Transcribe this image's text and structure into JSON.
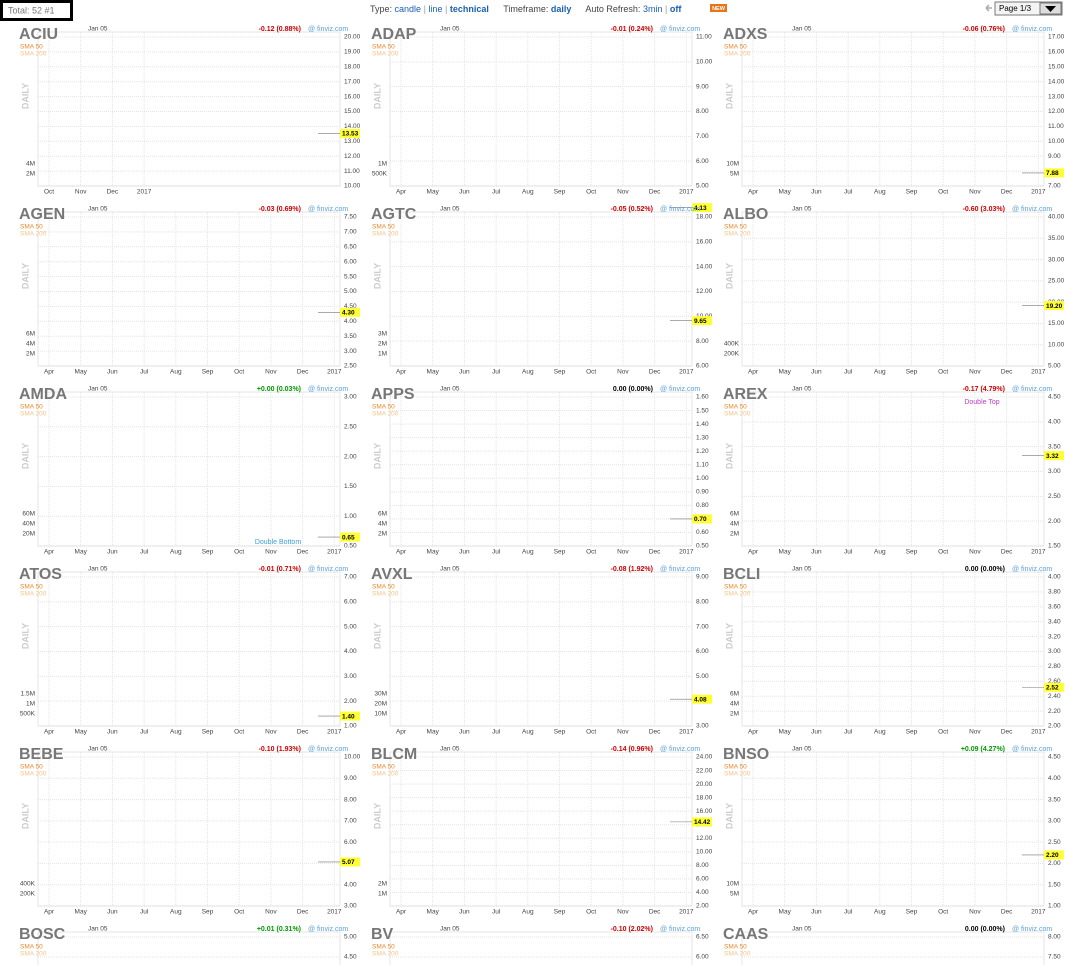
{
  "header": {
    "total": "Total: 52 #1",
    "type_label": "Type:",
    "type_options": [
      "candle",
      "line",
      "technical"
    ],
    "timeframe_label": "Timeframe:",
    "timeframe": "daily",
    "refresh_label": "Auto Refresh:",
    "refresh_options": [
      "3min",
      "off"
    ],
    "new_badge": "NEW",
    "page": "Page 1/3"
  },
  "common": {
    "date": "Jan 05",
    "source": "@ finviz.com",
    "sma50": "SMA 50",
    "sma200": "SMA 200",
    "timeframe": "DAILY"
  },
  "months": [
    "Apr",
    "May",
    "Jun",
    "Jul",
    "Aug",
    "Sep",
    "Oct",
    "Nov",
    "Dec",
    "2017"
  ],
  "tiles": [
    {
      "ticker": "ACIU",
      "change": "-0.12 (0.88%)",
      "yticks": [
        "20.00",
        "19.00",
        "18.00",
        "17.00",
        "16.00",
        "15.00",
        "14.00",
        "13.00",
        "12.00",
        "11.00",
        "10.00"
      ],
      "last": "13.53",
      "volume": [
        "4M",
        "2M"
      ],
      "xlabels": [
        "Oct",
        "Nov",
        "Dec",
        "2017"
      ]
    },
    {
      "ticker": "ADAP",
      "change": "-0.01 (0.24%)",
      "yticks": [
        "11.00",
        "10.00",
        "9.00",
        "8.00",
        "7.00",
        "6.00",
        "5.00"
      ],
      "last": "4.13",
      "volume": [
        "1M",
        "500K"
      ]
    },
    {
      "ticker": "ADXS",
      "change": "-0.06 (0.76%)",
      "yticks": [
        "17.00",
        "16.00",
        "15.00",
        "14.00",
        "13.00",
        "12.00",
        "11.00",
        "10.00",
        "9.00",
        "8.00",
        "7.00"
      ],
      "last": "7.88",
      "volume": [
        "10M",
        "5M"
      ]
    },
    {
      "ticker": "AGEN",
      "change": "-0.03 (0.69%)",
      "yticks": [
        "7.50",
        "7.00",
        "6.50",
        "6.00",
        "5.50",
        "5.00",
        "4.50",
        "4.00",
        "3.50",
        "3.00",
        "2.50"
      ],
      "last": "4.30",
      "volume": [
        "6M",
        "4M",
        "2M"
      ]
    },
    {
      "ticker": "AGTC",
      "change": "-0.05 (0.52%)",
      "yticks": [
        "18.00",
        "16.00",
        "14.00",
        "12.00",
        "10.00",
        "8.00",
        "6.00"
      ],
      "last": "9.65",
      "volume": [
        "3M",
        "2M",
        "1M"
      ]
    },
    {
      "ticker": "ALBO",
      "change": "-0.60 (3.03%)",
      "yticks": [
        "40.00",
        "35.00",
        "30.00",
        "25.00",
        "20.00",
        "15.00",
        "10.00",
        "5.00"
      ],
      "last": "19.20",
      "volume": [
        "400K",
        "200K"
      ]
    },
    {
      "ticker": "AMDA",
      "change": "+0.00 (0.03%)",
      "yticks": [
        "3.00",
        "2.50",
        "2.00",
        "1.50",
        "1.00",
        "0.50"
      ],
      "last": "0.65",
      "volume": [
        "60M",
        "40M",
        "20M"
      ],
      "annotation": "Double Bottom"
    },
    {
      "ticker": "APPS",
      "change": "0.00 (0.00%)",
      "yticks": [
        "1.60",
        "1.50",
        "1.40",
        "1.30",
        "1.20",
        "1.10",
        "1.00",
        "0.90",
        "0.80",
        "0.70",
        "0.60",
        "0.50"
      ],
      "last": "0.70",
      "volume": [
        "6M",
        "4M",
        "2M"
      ]
    },
    {
      "ticker": "AREX",
      "change": "-0.17 (4.79%)",
      "yticks": [
        "4.50",
        "4.00",
        "3.50",
        "3.00",
        "2.50",
        "2.00",
        "1.50"
      ],
      "last": "3.32",
      "volume": [
        "6M",
        "4M",
        "2M"
      ],
      "annotation": "Double Top"
    },
    {
      "ticker": "ATOS",
      "change": "-0.01 (0.71%)",
      "yticks": [
        "7.00",
        "6.00",
        "5.00",
        "4.00",
        "3.00",
        "2.00",
        "1.00"
      ],
      "last": "1.40",
      "volume": [
        "1.5M",
        "1M",
        "500K"
      ]
    },
    {
      "ticker": "AVXL",
      "change": "-0.08 (1.92%)",
      "yticks": [
        "9.00",
        "8.00",
        "7.00",
        "6.00",
        "5.00",
        "4.00",
        "3.00"
      ],
      "last": "4.08",
      "volume": [
        "30M",
        "20M",
        "10M"
      ]
    },
    {
      "ticker": "BCLI",
      "change": "0.00 (0.00%)",
      "yticks": [
        "4.00",
        "3.80",
        "3.60",
        "3.40",
        "3.20",
        "3.00",
        "2.80",
        "2.60",
        "2.40",
        "2.20",
        "2.00"
      ],
      "last": "2.52",
      "volume": [
        "6M",
        "4M",
        "2M"
      ]
    },
    {
      "ticker": "BEBE",
      "change": "-0.10 (1.93%)",
      "yticks": [
        "10.00",
        "9.00",
        "8.00",
        "7.00",
        "6.00",
        "5.00",
        "4.00",
        "3.00"
      ],
      "last": "5.07",
      "volume": [
        "400K",
        "200K"
      ]
    },
    {
      "ticker": "BLCM",
      "change": "-0.14 (0.96%)",
      "yticks": [
        "24.00",
        "22.00",
        "20.00",
        "18.00",
        "16.00",
        "14.00",
        "12.00",
        "10.00",
        "8.00",
        "6.00",
        "4.00",
        "2.00"
      ],
      "last": "14.42",
      "volume": [
        "2M",
        "1M"
      ]
    },
    {
      "ticker": "BNSO",
      "change": "+0.09 (4.27%)",
      "yticks": [
        "4.50",
        "4.00",
        "3.50",
        "3.00",
        "2.50",
        "2.00",
        "1.50",
        "1.00"
      ],
      "last": "2.20",
      "volume": [
        "10M",
        "5M"
      ]
    },
    {
      "ticker": "BOSC",
      "change": "+0.01 (0.31%)",
      "yticks": [
        "5.00",
        "4.50"
      ]
    },
    {
      "ticker": "BV",
      "change": "-0.10 (2.02%)",
      "yticks": [
        "6.50",
        "6.00"
      ]
    },
    {
      "ticker": "CAAS",
      "change": "0.00 (0.00%)",
      "yticks": [
        "8.00",
        "7.50"
      ]
    }
  ]
}
